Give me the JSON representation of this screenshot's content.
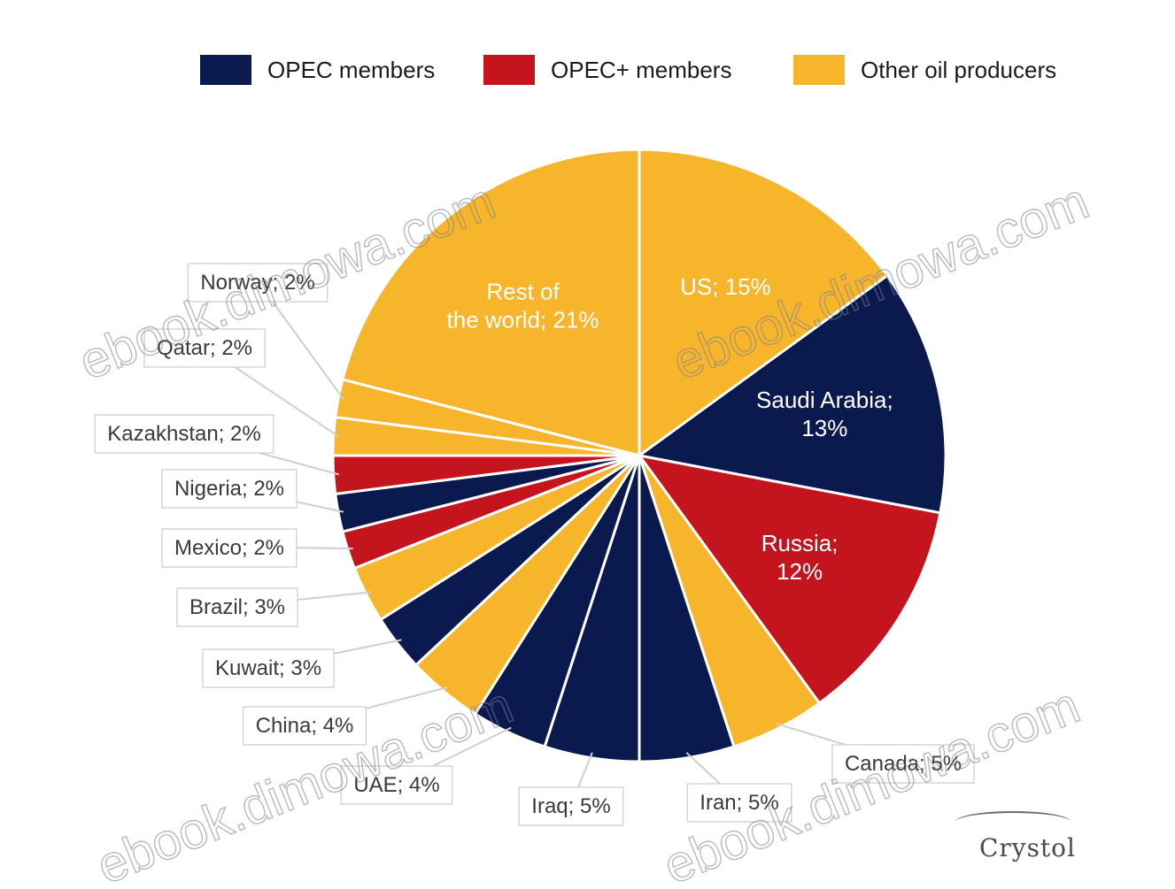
{
  "legend": [
    {
      "label": "OPEC members",
      "color": "#0b1a4e"
    },
    {
      "label": "OPEC+ members",
      "color": "#c4141d"
    },
    {
      "label": "Other oil producers",
      "color": "#f7b52c"
    }
  ],
  "chart_data": {
    "type": "pie",
    "title": "",
    "legend_position": "top",
    "slices": [
      {
        "label": "US",
        "value": 15,
        "display": "US; 15%",
        "group": "Other oil producers"
      },
      {
        "label": "Saudi Arabia",
        "value": 13,
        "display": "Saudi Arabia; 13%",
        "group": "OPEC members"
      },
      {
        "label": "Russia",
        "value": 12,
        "display": "Russia; 12%",
        "group": "OPEC+ members"
      },
      {
        "label": "Canada",
        "value": 5,
        "display": "Canada; 5%",
        "group": "Other oil producers"
      },
      {
        "label": "Iran",
        "value": 5,
        "display": "Iran; 5%",
        "group": "OPEC members"
      },
      {
        "label": "Iraq",
        "value": 5,
        "display": "Iraq; 5%",
        "group": "OPEC members"
      },
      {
        "label": "UAE",
        "value": 4,
        "display": "UAE; 4%",
        "group": "OPEC members"
      },
      {
        "label": "China",
        "value": 4,
        "display": "China; 4%",
        "group": "Other oil producers"
      },
      {
        "label": "Kuwait",
        "value": 3,
        "display": "Kuwait; 3%",
        "group": "OPEC members"
      },
      {
        "label": "Brazil",
        "value": 3,
        "display": "Brazil; 3%",
        "group": "Other oil producers"
      },
      {
        "label": "Mexico",
        "value": 2,
        "display": "Mexico; 2%",
        "group": "OPEC+ members"
      },
      {
        "label": "Nigeria",
        "value": 2,
        "display": "Nigeria; 2%",
        "group": "OPEC members"
      },
      {
        "label": "Kazakhstan",
        "value": 2,
        "display": "Kazakhstan; 2%",
        "group": "OPEC+ members"
      },
      {
        "label": "Qatar",
        "value": 2,
        "display": "Qatar; 2%",
        "group": "Other oil producers"
      },
      {
        "label": "Norway",
        "value": 2,
        "display": "Norway; 2%",
        "group": "Other oil producers"
      },
      {
        "label": "Rest of the world",
        "value": 21,
        "display": "Rest of the world; 21%",
        "group": "Other oil producers"
      }
    ]
  },
  "watermark": "ebook.dimowa.com",
  "logo": "Crystol"
}
